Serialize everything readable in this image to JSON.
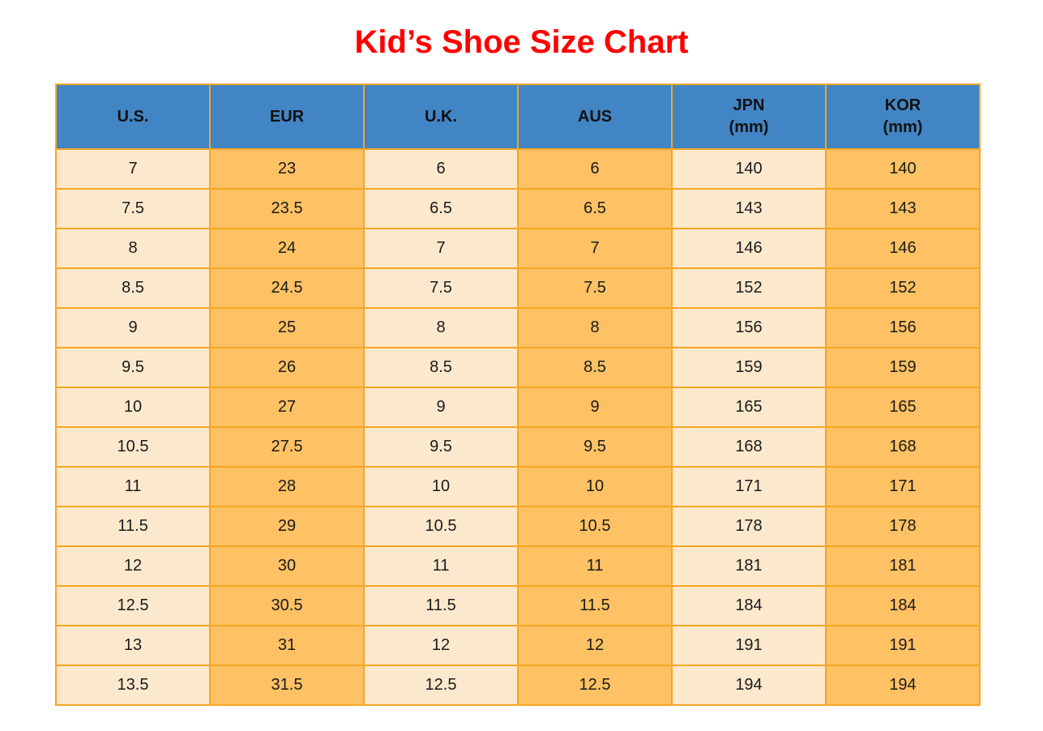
{
  "page_title": "Kid’s Shoe Size Chart",
  "colors": {
    "title_red": "#FF0000",
    "header_blue": "#4285C4",
    "row_cream": "#FCE9CD",
    "row_orange": "#FEC164",
    "grid_orange": "#F5A623",
    "text_black": "#1B1B1B"
  },
  "table": {
    "headers": [
      {
        "l1": "U.S.",
        "l2": ""
      },
      {
        "l1": "EUR",
        "l2": ""
      },
      {
        "l1": "U.K.",
        "l2": ""
      },
      {
        "l1": "AUS",
        "l2": ""
      },
      {
        "l1": "JPN",
        "l2": "(mm)"
      },
      {
        "l1": "KOR",
        "l2": "(mm)"
      }
    ]
  },
  "chart_data": {
    "type": "table",
    "title": "Kid’s Shoe Size Chart",
    "columns": [
      "U.S.",
      "EUR",
      "U.K.",
      "AUS",
      "JPN (mm)",
      "KOR (mm)"
    ],
    "rows": [
      [
        "7",
        "23",
        "6",
        "6",
        "140",
        "140"
      ],
      [
        "7.5",
        "23.5",
        "6.5",
        "6.5",
        "143",
        "143"
      ],
      [
        "8",
        "24",
        "7",
        "7",
        "146",
        "146"
      ],
      [
        "8.5",
        "24.5",
        "7.5",
        "7.5",
        "152",
        "152"
      ],
      [
        "9",
        "25",
        "8",
        "8",
        "156",
        "156"
      ],
      [
        "9.5",
        "26",
        "8.5",
        "8.5",
        "159",
        "159"
      ],
      [
        "10",
        "27",
        "9",
        "9",
        "165",
        "165"
      ],
      [
        "10.5",
        "27.5",
        "9.5",
        "9.5",
        "168",
        "168"
      ],
      [
        "11",
        "28",
        "10",
        "10",
        "171",
        "171"
      ],
      [
        "11.5",
        "29",
        "10.5",
        "10.5",
        "178",
        "178"
      ],
      [
        "12",
        "30",
        "11",
        "11",
        "181",
        "181"
      ],
      [
        "12.5",
        "30.5",
        "11.5",
        "11.5",
        "184",
        "184"
      ],
      [
        "13",
        "31",
        "12",
        "12",
        "191",
        "191"
      ],
      [
        "13.5",
        "31.5",
        "12.5",
        "12.5",
        "194",
        "194"
      ]
    ]
  }
}
